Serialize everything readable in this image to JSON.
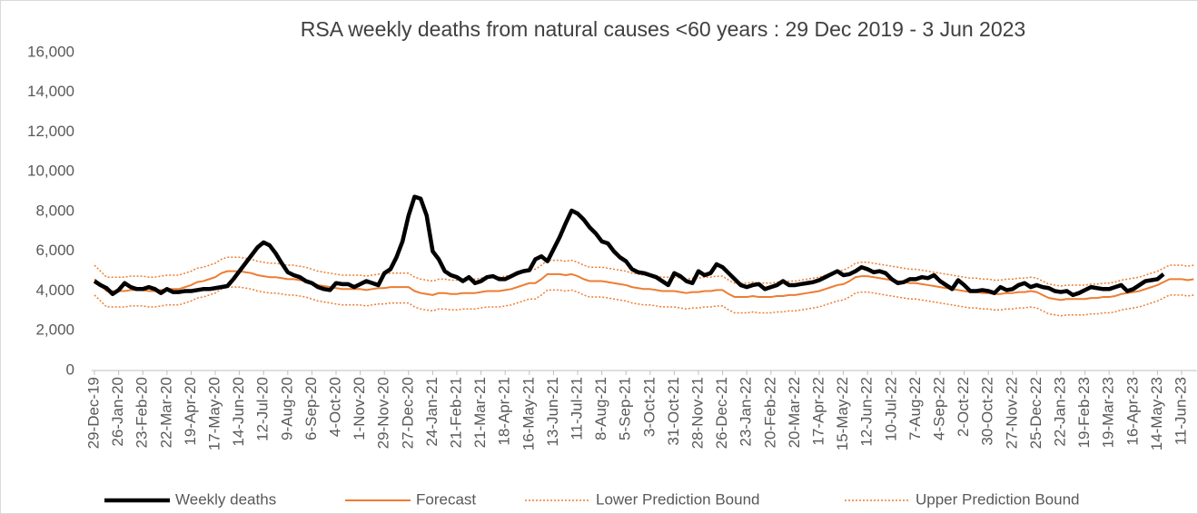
{
  "chart_data": {
    "type": "line",
    "title": "RSA weekly deaths from natural causes <60 years : 29 Dec 2019 - 3 Jun 2023",
    "categories": [
      "29-Dec-19",
      null,
      null,
      null,
      "26-Jan-20",
      null,
      null,
      null,
      "23-Feb-20",
      null,
      null,
      null,
      "22-Mar-20",
      null,
      null,
      null,
      "19-Apr-20",
      null,
      null,
      null,
      "17-May-20",
      null,
      null,
      null,
      "14-Jun-20",
      null,
      null,
      null,
      "12-Jul-20",
      null,
      null,
      null,
      "9-Aug-20",
      null,
      null,
      null,
      "6-Sep-20",
      null,
      null,
      null,
      "4-Oct-20",
      null,
      null,
      null,
      "1-Nov-20",
      null,
      null,
      null,
      "29-Nov-20",
      null,
      null,
      null,
      "27-Dec-20",
      null,
      null,
      null,
      "24-Jan-21",
      null,
      null,
      null,
      "21-Feb-21",
      null,
      null,
      null,
      "21-Mar-21",
      null,
      null,
      null,
      "18-Apr-21",
      null,
      null,
      null,
      "16-May-21",
      null,
      null,
      null,
      "13-Jun-21",
      null,
      null,
      null,
      "11-Jul-21",
      null,
      null,
      null,
      "8-Aug-21",
      null,
      null,
      null,
      "5-Sep-21",
      null,
      null,
      null,
      "3-Oct-21",
      null,
      null,
      null,
      "31-Oct-21",
      null,
      null,
      null,
      "28-Nov-21",
      null,
      null,
      null,
      "26-Dec-21",
      null,
      null,
      null,
      "23-Jan-22",
      null,
      null,
      null,
      "20-Feb-22",
      null,
      null,
      null,
      "20-Mar-22",
      null,
      null,
      null,
      "17-Apr-22",
      null,
      null,
      null,
      "15-May-22",
      null,
      null,
      null,
      "12-Jun-22",
      null,
      null,
      null,
      "10-Jul-22",
      null,
      null,
      null,
      "7-Aug-22",
      null,
      null,
      null,
      "4-Sep-22",
      null,
      null,
      null,
      "2-Oct-22",
      null,
      null,
      null,
      "30-Oct-22",
      null,
      null,
      null,
      "27-Nov-22",
      null,
      null,
      null,
      "25-Dec-22",
      null,
      null,
      null,
      "22-Jan-23",
      null,
      null,
      null,
      "19-Feb-23",
      null,
      null,
      null,
      "19-Mar-23",
      null,
      null,
      null,
      "16-Apr-23",
      null,
      null,
      null,
      "14-May-23",
      null,
      null,
      null,
      "11-Jun-23",
      null,
      null
    ],
    "series": [
      {
        "name": "Weekly deaths",
        "color": "#000000",
        "linestyle": "solid",
        "linewidth": 4.5,
        "values": [
          4500,
          4300,
          4150,
          3850,
          4050,
          4400,
          4200,
          4100,
          4100,
          4200,
          4100,
          3900,
          4100,
          3950,
          3950,
          4000,
          4000,
          4050,
          4100,
          4100,
          4150,
          4200,
          4250,
          4600,
          5000,
          5400,
          5800,
          6200,
          6450,
          6300,
          5900,
          5400,
          4950,
          4800,
          4700,
          4500,
          4400,
          4200,
          4100,
          4050,
          4400,
          4350,
          4350,
          4200,
          4350,
          4500,
          4400,
          4300,
          4900,
          5100,
          5700,
          6500,
          7800,
          8750,
          8650,
          7800,
          6000,
          5600,
          5000,
          4800,
          4700,
          4500,
          4700,
          4400,
          4500,
          4700,
          4750,
          4600,
          4600,
          4750,
          4900,
          5000,
          5050,
          5600,
          5750,
          5500,
          6100,
          6700,
          7400,
          8050,
          7900,
          7600,
          7200,
          6900,
          6500,
          6400,
          6000,
          5700,
          5500,
          5100,
          4950,
          4900,
          4800,
          4700,
          4500,
          4300,
          4900,
          4750,
          4500,
          4400,
          5000,
          4800,
          4900,
          5350,
          5200,
          4900,
          4600,
          4300,
          4200,
          4300,
          4350,
          4100,
          4200,
          4300,
          4500,
          4300,
          4300,
          4350,
          4400,
          4450,
          4550,
          4700,
          4850,
          5000,
          4800,
          4850,
          5000,
          5200,
          5100,
          4950,
          5000,
          4900,
          4600,
          4400,
          4450,
          4600,
          4600,
          4700,
          4650,
          4800,
          4500,
          4300,
          4100,
          4550,
          4300,
          4000,
          4000,
          4050,
          4000,
          3900,
          4200,
          4050,
          4100,
          4300,
          4400,
          4200,
          4300,
          4200,
          4150,
          4000,
          3950,
          4000,
          3800,
          3900,
          4050,
          4200,
          4150,
          4100,
          4100,
          4200,
          4300,
          4000,
          4100,
          4300,
          4500,
          4550,
          4600,
          4850,
          null,
          null,
          null,
          null,
          null
        ]
      },
      {
        "name": "Forecast",
        "color": "#ed7d31",
        "linestyle": "solid",
        "linewidth": 2,
        "values": [
          4600,
          4300,
          4000,
          4000,
          4000,
          4000,
          4050,
          4050,
          4050,
          4000,
          4000,
          4050,
          4100,
          4100,
          4100,
          4200,
          4300,
          4450,
          4500,
          4600,
          4700,
          4900,
          5000,
          5000,
          5000,
          4950,
          4900,
          4800,
          4750,
          4700,
          4700,
          4650,
          4600,
          4600,
          4550,
          4500,
          4400,
          4300,
          4250,
          4200,
          4150,
          4100,
          4100,
          4100,
          4100,
          4050,
          4100,
          4150,
          4150,
          4200,
          4200,
          4200,
          4200,
          4000,
          3900,
          3850,
          3800,
          3900,
          3900,
          3850,
          3850,
          3900,
          3900,
          3900,
          3950,
          4000,
          4000,
          4000,
          4050,
          4100,
          4200,
          4300,
          4400,
          4400,
          4600,
          4850,
          4850,
          4850,
          4800,
          4850,
          4750,
          4600,
          4500,
          4500,
          4500,
          4450,
          4400,
          4350,
          4300,
          4200,
          4150,
          4100,
          4100,
          4050,
          4000,
          4000,
          4000,
          3950,
          3900,
          3950,
          3950,
          4000,
          4000,
          4050,
          4050,
          3850,
          3700,
          3700,
          3700,
          3750,
          3700,
          3700,
          3700,
          3750,
          3750,
          3800,
          3800,
          3850,
          3900,
          3950,
          4000,
          4100,
          4200,
          4300,
          4350,
          4500,
          4700,
          4750,
          4750,
          4700,
          4650,
          4600,
          4550,
          4500,
          4450,
          4400,
          4400,
          4350,
          4300,
          4250,
          4200,
          4150,
          4100,
          4050,
          4000,
          3950,
          3950,
          3900,
          3900,
          3850,
          3850,
          3900,
          3900,
          3950,
          3950,
          4000,
          3950,
          3800,
          3650,
          3600,
          3550,
          3600,
          3600,
          3600,
          3600,
          3650,
          3650,
          3700,
          3700,
          3750,
          3850,
          3900,
          3950,
          4000,
          4100,
          4200,
          4300,
          4450,
          4600,
          4600,
          4600,
          4550,
          4600
        ]
      },
      {
        "name": "Lower Prediction Bound",
        "color": "#ed7d31",
        "linestyle": "dotted",
        "linewidth": 1.5,
        "values": [
          3800,
          3500,
          3200,
          3200,
          3200,
          3200,
          3250,
          3250,
          3250,
          3200,
          3200,
          3250,
          3300,
          3300,
          3300,
          3400,
          3500,
          3650,
          3700,
          3800,
          3900,
          4100,
          4200,
          4200,
          4200,
          4150,
          4100,
          4000,
          3950,
          3900,
          3900,
          3850,
          3800,
          3800,
          3750,
          3700,
          3600,
          3500,
          3450,
          3400,
          3350,
          3300,
          3300,
          3300,
          3300,
          3250,
          3300,
          3350,
          3350,
          3400,
          3400,
          3400,
          3400,
          3200,
          3100,
          3050,
          3000,
          3100,
          3100,
          3050,
          3050,
          3100,
          3100,
          3100,
          3150,
          3200,
          3200,
          3200,
          3250,
          3300,
          3400,
          3500,
          3600,
          3600,
          3800,
          4050,
          4050,
          4050,
          4000,
          4050,
          3950,
          3800,
          3700,
          3700,
          3700,
          3650,
          3600,
          3550,
          3500,
          3400,
          3350,
          3300,
          3300,
          3250,
          3200,
          3200,
          3200,
          3150,
          3100,
          3150,
          3150,
          3200,
          3200,
          3250,
          3250,
          3050,
          2900,
          2900,
          2900,
          2950,
          2900,
          2900,
          2900,
          2950,
          2950,
          3000,
          3000,
          3050,
          3100,
          3150,
          3200,
          3300,
          3400,
          3500,
          3550,
          3700,
          3900,
          3950,
          3950,
          3900,
          3850,
          3800,
          3750,
          3700,
          3650,
          3600,
          3600,
          3550,
          3500,
          3450,
          3400,
          3350,
          3300,
          3250,
          3200,
          3150,
          3150,
          3100,
          3100,
          3050,
          3050,
          3100,
          3100,
          3150,
          3150,
          3200,
          3150,
          3000,
          2850,
          2800,
          2750,
          2800,
          2800,
          2800,
          2800,
          2850,
          2850,
          2900,
          2900,
          2950,
          3050,
          3100,
          3150,
          3200,
          3300,
          3400,
          3500,
          3650,
          3800,
          3800,
          3800,
          3750,
          3800
        ]
      },
      {
        "name": "Upper Prediction Bound",
        "color": "#ed7d31",
        "linestyle": "dotted",
        "linewidth": 1.5,
        "values": [
          5300,
          5000,
          4700,
          4700,
          4700,
          4700,
          4750,
          4750,
          4750,
          4700,
          4700,
          4750,
          4800,
          4800,
          4800,
          4900,
          5000,
          5150,
          5200,
          5300,
          5400,
          5600,
          5700,
          5700,
          5700,
          5650,
          5600,
          5500,
          5450,
          5400,
          5400,
          5350,
          5300,
          5300,
          5250,
          5200,
          5100,
          5000,
          4950,
          4900,
          4850,
          4800,
          4800,
          4800,
          4800,
          4750,
          4800,
          4850,
          4850,
          4900,
          4900,
          4900,
          4900,
          4700,
          4600,
          4550,
          4500,
          4600,
          4600,
          4550,
          4550,
          4600,
          4600,
          4600,
          4650,
          4700,
          4700,
          4700,
          4750,
          4800,
          4900,
          5000,
          5100,
          5100,
          5300,
          5550,
          5550,
          5550,
          5500,
          5550,
          5450,
          5300,
          5200,
          5200,
          5200,
          5150,
          5100,
          5050,
          5000,
          4900,
          4850,
          4800,
          4800,
          4750,
          4700,
          4700,
          4700,
          4650,
          4600,
          4650,
          4650,
          4700,
          4700,
          4750,
          4750,
          4550,
          4400,
          4400,
          4400,
          4450,
          4400,
          4400,
          4400,
          4450,
          4450,
          4500,
          4500,
          4550,
          4600,
          4650,
          4700,
          4800,
          4900,
          5000,
          5050,
          5200,
          5400,
          5450,
          5450,
          5400,
          5350,
          5300,
          5250,
          5200,
          5150,
          5100,
          5100,
          5050,
          5000,
          4950,
          4900,
          4850,
          4800,
          4750,
          4700,
          4650,
          4650,
          4600,
          4600,
          4550,
          4550,
          4600,
          4600,
          4650,
          4650,
          4700,
          4650,
          4500,
          4350,
          4300,
          4250,
          4300,
          4300,
          4300,
          4300,
          4350,
          4350,
          4400,
          4400,
          4450,
          4550,
          4600,
          4650,
          4700,
          4800,
          4900,
          5000,
          5150,
          5300,
          5300,
          5300,
          5250,
          5300
        ]
      }
    ],
    "ylim": [
      0,
      16000
    ],
    "yticks": [
      0,
      {
        "value": 2000,
        "label": "2,000"
      },
      {
        "value": 4000,
        "label": "4,000"
      },
      {
        "value": 6000,
        "label": "6,000"
      },
      {
        "value": 8000,
        "label": "8,000"
      },
      {
        "value": 10000,
        "label": "10,000"
      },
      {
        "value": 12000,
        "label": "12,000"
      },
      {
        "value": 14000,
        "label": "14,000"
      },
      {
        "value": 16000,
        "label": "16,000"
      }
    ],
    "grid": false,
    "legend": "bottom"
  }
}
